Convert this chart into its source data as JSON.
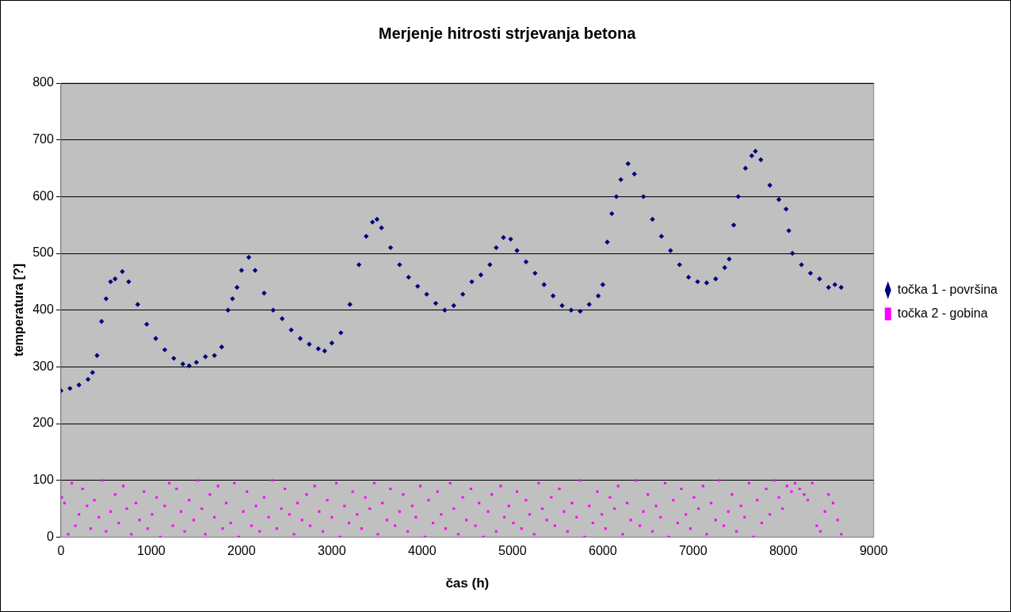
{
  "chart_data": {
    "type": "scatter",
    "title": "Merjenje hitrosti strjevanja betona",
    "xlabel": "čas (h)",
    "ylabel": "temperatura [?]",
    "xlim": [
      0,
      9000
    ],
    "xticks": [
      0,
      1000,
      2000,
      3000,
      4000,
      5000,
      6000,
      7000,
      8000,
      9000
    ],
    "ylim": [
      0,
      800
    ],
    "yticks": [
      0,
      100,
      200,
      300,
      400,
      500,
      600,
      700,
      800
    ],
    "grid": "y",
    "legend": "right",
    "series": [
      {
        "name": "točka 1 - površina",
        "color": "#000080",
        "marker": "diamond",
        "x": [
          0,
          100,
          200,
          300,
          350,
          400,
          450,
          500,
          550,
          600,
          680,
          750,
          850,
          950,
          1050,
          1150,
          1250,
          1350,
          1420,
          1500,
          1600,
          1700,
          1780,
          1850,
          1900,
          1950,
          2000,
          2080,
          2150,
          2250,
          2350,
          2450,
          2550,
          2650,
          2750,
          2850,
          2920,
          3000,
          3100,
          3200,
          3300,
          3380,
          3450,
          3500,
          3550,
          3650,
          3750,
          3850,
          3950,
          4050,
          4150,
          4250,
          4350,
          4450,
          4550,
          4650,
          4750,
          4820,
          4900,
          4980,
          5050,
          5150,
          5250,
          5350,
          5450,
          5550,
          5650,
          5750,
          5850,
          5950,
          6000,
          6050,
          6100,
          6150,
          6200,
          6280,
          6350,
          6450,
          6550,
          6650,
          6750,
          6850,
          6950,
          7050,
          7150,
          7250,
          7350,
          7400,
          7450,
          7500,
          7580,
          7650,
          7690,
          7750,
          7850,
          7950,
          8030,
          8060,
          8100,
          8200,
          8300,
          8400,
          8500,
          8570,
          8640
        ],
        "values": [
          258,
          262,
          268,
          278,
          290,
          320,
          380,
          420,
          450,
          455,
          468,
          450,
          410,
          375,
          350,
          330,
          315,
          305,
          302,
          308,
          318,
          320,
          335,
          400,
          420,
          440,
          470,
          493,
          470,
          430,
          400,
          385,
          365,
          350,
          340,
          332,
          328,
          342,
          360,
          410,
          480,
          530,
          555,
          560,
          545,
          510,
          480,
          458,
          442,
          428,
          412,
          400,
          408,
          428,
          450,
          462,
          480,
          510,
          528,
          525,
          505,
          485,
          465,
          445,
          425,
          408,
          400,
          398,
          410,
          425,
          445,
          520,
          570,
          600,
          630,
          658,
          640,
          600,
          560,
          530,
          505,
          480,
          458,
          450,
          448,
          455,
          475,
          490,
          550,
          600,
          650,
          672,
          680,
          665,
          620,
          595,
          578,
          540,
          500,
          480,
          465,
          455,
          440,
          445,
          440
        ]
      },
      {
        "name": "točka 2 - gobina",
        "color": "#ff00ff",
        "marker": "square",
        "x": [
          10,
          40,
          80,
          120,
          160,
          200,
          240,
          290,
          330,
          370,
          420,
          460,
          500,
          550,
          600,
          640,
          690,
          730,
          780,
          830,
          870,
          920,
          960,
          1010,
          1060,
          1100,
          1150,
          1200,
          1240,
          1280,
          1330,
          1370,
          1420,
          1470,
          1510,
          1560,
          1600,
          1650,
          1700,
          1740,
          1790,
          1830,
          1880,
          1920,
          1970,
          2020,
          2060,
          2110,
          2160,
          2200,
          2250,
          2300,
          2340,
          2390,
          2440,
          2480,
          2530,
          2580,
          2620,
          2670,
          2720,
          2760,
          2810,
          2860,
          2900,
          2950,
          3000,
          3050,
          3090,
          3140,
          3190,
          3230,
          3280,
          3330,
          3370,
          3420,
          3470,
          3510,
          3560,
          3610,
          3650,
          3700,
          3750,
          3790,
          3840,
          3890,
          3930,
          3980,
          4030,
          4070,
          4120,
          4170,
          4210,
          4260,
          4310,
          4350,
          4400,
          4450,
          4490,
          4540,
          4590,
          4630,
          4680,
          4730,
          4770,
          4820,
          4870,
          4910,
          4960,
          5010,
          5050,
          5100,
          5150,
          5190,
          5240,
          5290,
          5330,
          5380,
          5430,
          5470,
          5520,
          5570,
          5610,
          5660,
          5710,
          5750,
          5800,
          5850,
          5890,
          5940,
          5990,
          6030,
          6080,
          6130,
          6170,
          6220,
          6270,
          6310,
          6360,
          6410,
          6450,
          6500,
          6550,
          6590,
          6640,
          6690,
          6730,
          6780,
          6830,
          6870,
          6920,
          6970,
          7010,
          7060,
          7110,
          7150,
          7200,
          7250,
          7290,
          7340,
          7390,
          7430,
          7480,
          7530,
          7570,
          7620,
          7670,
          7710,
          7760,
          7810,
          7850,
          7900,
          7950,
          7990,
          8040,
          8090,
          8130,
          8180,
          8230,
          8270,
          8320,
          8370,
          8410,
          8460,
          8500,
          8550,
          8600,
          8640
        ],
        "values": [
          70,
          60,
          5,
          95,
          20,
          40,
          85,
          55,
          15,
          65,
          35,
          100,
          10,
          45,
          75,
          25,
          90,
          50,
          5,
          60,
          30,
          80,
          15,
          40,
          70,
          0,
          55,
          95,
          20,
          85,
          45,
          10,
          65,
          30,
          100,
          50,
          5,
          75,
          35,
          90,
          15,
          60,
          25,
          95,
          0,
          45,
          80,
          20,
          55,
          10,
          70,
          35,
          100,
          15,
          50,
          85,
          40,
          5,
          60,
          30,
          75,
          20,
          90,
          45,
          10,
          65,
          35,
          95,
          0,
          55,
          25,
          80,
          40,
          15,
          70,
          50,
          95,
          5,
          60,
          30,
          85,
          20,
          45,
          75,
          10,
          55,
          35,
          90,
          0,
          65,
          25,
          80,
          40,
          15,
          95,
          50,
          5,
          70,
          30,
          85,
          20,
          60,
          0,
          45,
          75,
          10,
          90,
          35,
          55,
          25,
          80,
          15,
          65,
          40,
          5,
          95,
          50,
          30,
          70,
          20,
          85,
          45,
          10,
          60,
          35,
          100,
          0,
          55,
          25,
          80,
          40,
          15,
          70,
          50,
          90,
          5,
          60,
          30,
          100,
          20,
          45,
          75,
          10,
          55,
          35,
          95,
          0,
          65,
          25,
          85,
          40,
          15,
          70,
          50,
          90,
          5,
          60,
          30,
          100,
          20,
          45,
          75,
          10,
          55,
          35,
          95,
          0,
          65,
          25,
          85,
          40,
          100,
          70,
          50,
          90,
          80,
          95,
          85,
          75,
          65,
          95,
          20,
          10,
          45,
          75,
          60,
          30,
          5
        ]
      }
    ]
  }
}
